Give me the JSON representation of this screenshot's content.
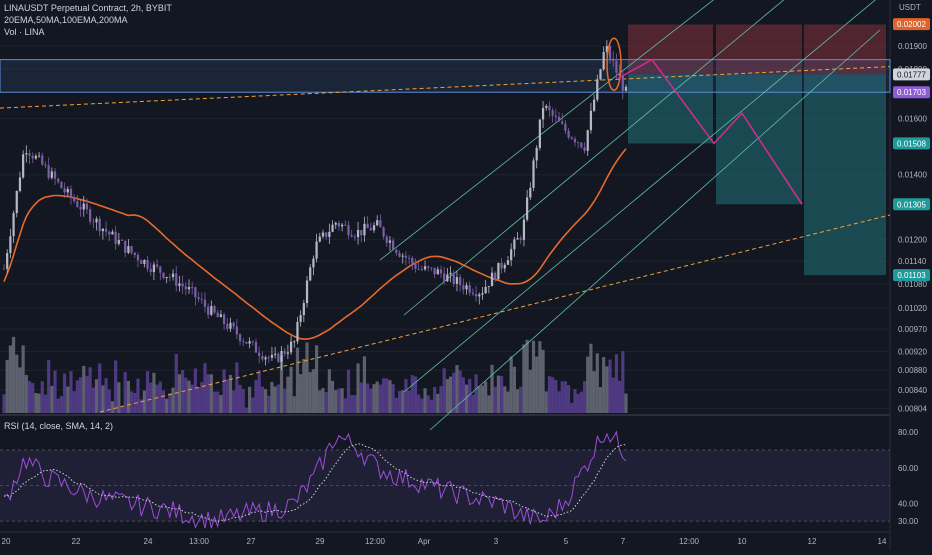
{
  "header": {
    "title": "LINAUSDT Perpetual Contract, 2h, BYBIT",
    "ma_line": "20EMA,50MA,100EMA,200MA",
    "vol_line": "Vol · LINA"
  },
  "rsi_header": "RSI (14, close, SMA, 14, 2)",
  "axis_currency": "USDT",
  "colors": {
    "background": "#131722",
    "up_candle": "#b5b8c2",
    "down_candle": "#7b5ea7",
    "ma_orange": "#e86a2b",
    "channel_teal": "#5fbfa6",
    "trend_orange": "#f0a23a",
    "profit_zone": "#1f6b72",
    "stop_zone": "#7a2e3b",
    "forecast_pink": "#d42c8f",
    "box_blue": "#5a8ddc",
    "rsi_line": "#9c4fd8"
  },
  "chart_data": [
    {
      "type": "candlestick",
      "symbol": "LINAUSDT",
      "timeframe": "2h",
      "exchange": "BYBIT",
      "y_scale": "log",
      "ylim": [
        0.00795,
        0.0212
      ],
      "price_ticks": [
        "0.01900",
        "0.01800",
        "0.01600",
        "0.01400",
        "0.01200",
        "0.01140",
        "0.01080",
        "0.01020",
        "0.00970",
        "0.00920",
        "0.00880",
        "0.00840",
        "0.00804"
      ],
      "x_labels": [
        "20",
        "22",
        "24",
        "13:00",
        "27",
        "29",
        "12:00",
        "Apr",
        "3",
        "5",
        "7",
        "12:00",
        "10",
        "12",
        "14"
      ],
      "price_labels": [
        {
          "label": "0.02002",
          "color": "#e0622c"
        },
        {
          "label": "0.01777",
          "color": "#d1d4dc",
          "text_color": "#131722"
        },
        {
          "label": "0.01703",
          "color": "#8e5cd6"
        },
        {
          "label": "0.01508",
          "color": "#1f9a9a"
        },
        {
          "label": "0.01305",
          "color": "#1f9a9a"
        },
        {
          "label": "0.01103",
          "color": "#1f9a9a"
        }
      ],
      "series_close_approx": [
        0.0112,
        0.015,
        0.0142,
        0.0134,
        0.0128,
        0.0122,
        0.0117,
        0.0113,
        0.011,
        0.0106,
        0.0101,
        0.0097,
        0.0093,
        0.009,
        0.0094,
        0.0118,
        0.0125,
        0.0122,
        0.0124,
        0.0117,
        0.0112,
        0.0111,
        0.0108,
        0.0106,
        0.0113,
        0.0122,
        0.0165,
        0.0156,
        0.015,
        0.019,
        0.017
      ]
    },
    {
      "type": "line",
      "name": "RSI (14, close, SMA, 14, 2)",
      "ylim": [
        25,
        88
      ],
      "ticks": [
        "80.00",
        "60.00",
        "40.00",
        "30.00"
      ],
      "values_approx": [
        40,
        65,
        55,
        50,
        45,
        42,
        40,
        38,
        36,
        33,
        30,
        32,
        35,
        36,
        40,
        55,
        78,
        72,
        60,
        55,
        52,
        48,
        45,
        42,
        40,
        33,
        30,
        40,
        60,
        82,
        68
      ]
    }
  ]
}
